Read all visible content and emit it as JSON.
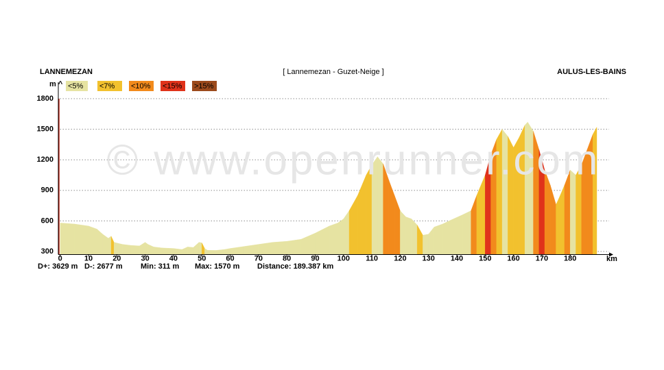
{
  "chart_data": {
    "type": "elevation-profile",
    "start": "LANNEMEZAN",
    "title": "[ Lannemezan - Guzet-Neige ]",
    "end": "AULUS-LES-BAINS",
    "watermark": "© www.openrunner.com",
    "y_label": "m ^",
    "x_label": "km",
    "legend": [
      {
        "name": "<5%",
        "color": "#e6e3a2",
        "max": 5
      },
      {
        "name": "<7%",
        "color": "#f2c12e",
        "max": 7
      },
      {
        "name": "<10%",
        "color": "#f28a1c",
        "max": 10
      },
      {
        "name": "<15%",
        "color": "#e0321a",
        "max": 15
      },
      {
        "name": ">15%",
        "color": "#9c4a1c",
        "min": 15
      }
    ],
    "stats": [
      "D+: 3629 m",
      "D-: 2677 m",
      "Min: 311 m",
      "Max: 1570 m",
      "Distance: 189.387 km"
    ],
    "x": [
      0,
      5,
      10,
      13,
      15,
      17,
      18,
      19,
      22,
      25,
      28,
      30,
      31,
      33,
      36,
      40,
      43,
      45,
      47,
      49,
      50,
      51,
      52,
      55,
      58,
      60,
      65,
      70,
      75,
      80,
      85,
      90,
      95,
      98,
      100,
      102,
      105,
      108,
      110,
      112,
      114,
      116,
      118,
      120,
      122,
      124,
      126,
      128,
      130,
      132,
      135,
      138,
      142,
      145,
      147,
      150,
      152,
      154,
      156,
      158,
      160,
      162,
      164,
      165,
      167,
      169,
      171,
      173,
      175,
      176,
      178,
      180,
      182,
      184,
      186,
      188,
      189.387
    ],
    "values": [
      580,
      570,
      550,
      520,
      470,
      430,
      450,
      390,
      370,
      360,
      355,
      390,
      370,
      345,
      335,
      330,
      320,
      345,
      340,
      390,
      385,
      330,
      312,
      311,
      320,
      330,
      350,
      370,
      390,
      400,
      420,
      480,
      550,
      580,
      620,
      700,
      850,
      1050,
      1150,
      1230,
      1160,
      1000,
      850,
      700,
      640,
      620,
      560,
      460,
      470,
      540,
      570,
      610,
      660,
      700,
      850,
      1050,
      1250,
      1400,
      1500,
      1430,
      1320,
      1420,
      1540,
      1570,
      1480,
      1300,
      1100,
      950,
      760,
      820,
      950,
      1100,
      1050,
      1150,
      1300,
      1450,
      1520
    ],
    "xlim": [
      0,
      189.387
    ],
    "ylim": [
      270,
      1800
    ],
    "xticks": [
      0,
      10,
      20,
      30,
      40,
      50,
      60,
      70,
      80,
      90,
      100,
      110,
      120,
      130,
      140,
      150,
      160,
      170,
      180
    ],
    "yticks": [
      300,
      600,
      900,
      1200,
      1500,
      1800
    ],
    "grid": true
  }
}
